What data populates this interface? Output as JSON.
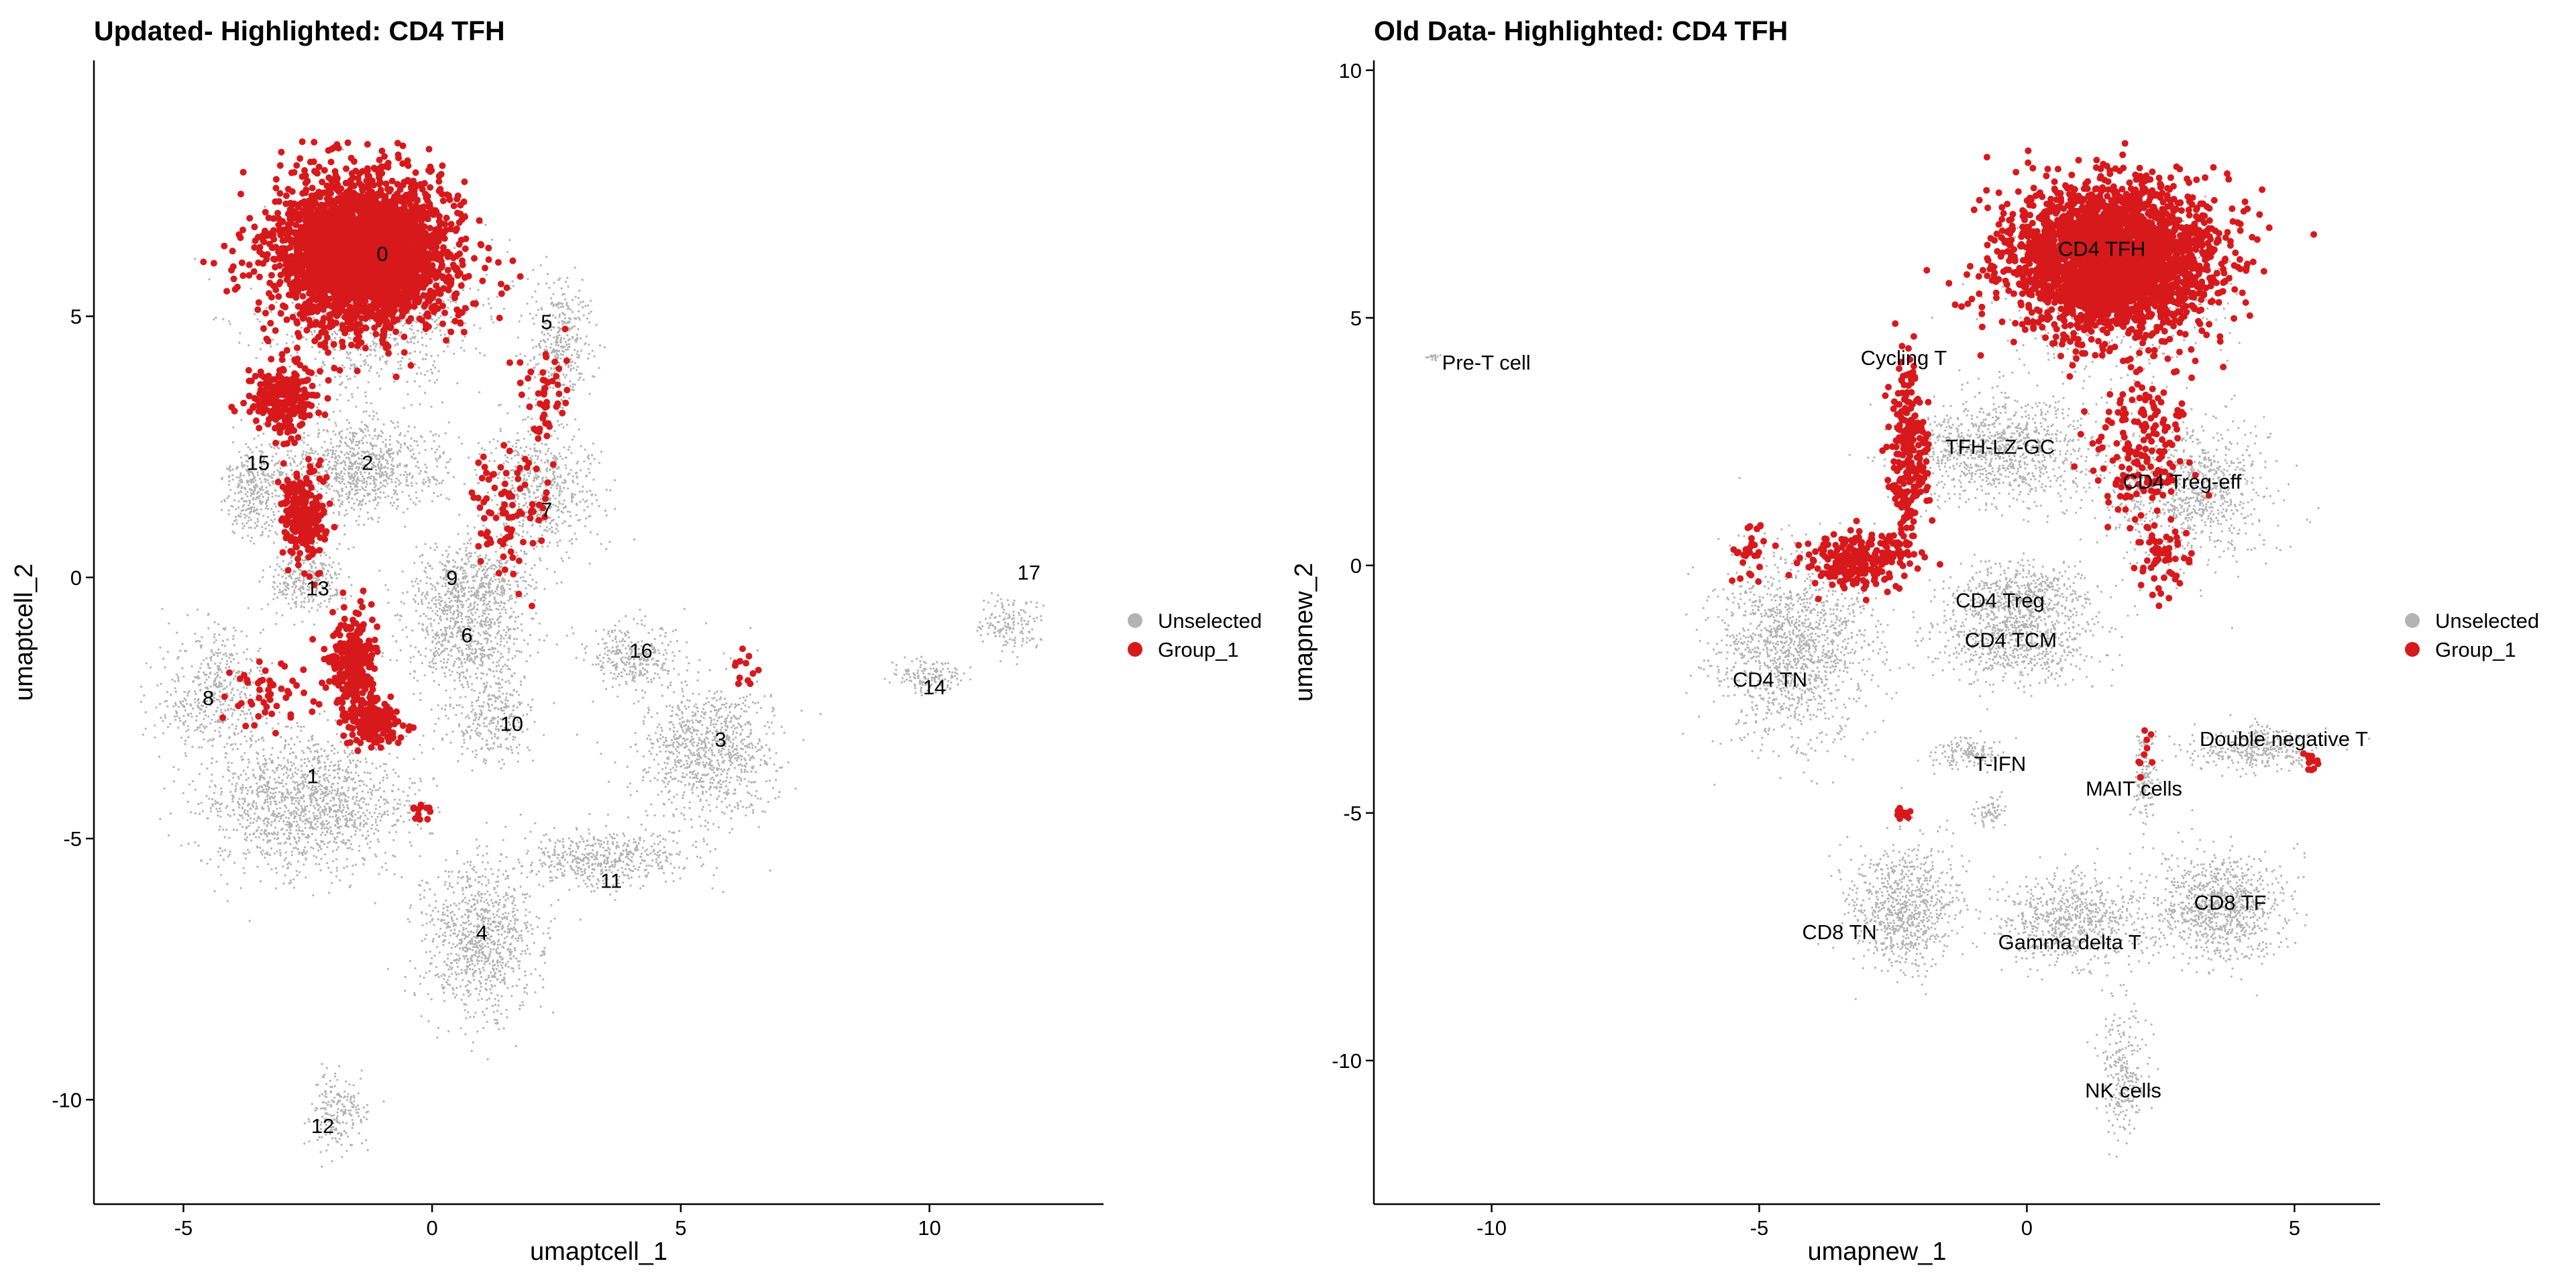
{
  "chart_data": [
    {
      "type": "scatter",
      "title": "Updated- Highlighted: CD4 TFH",
      "xlabel": "umaptcell_1",
      "ylabel": "umaptcell_2",
      "xlim": [
        -6.8,
        13.5
      ],
      "ylim": [
        -12,
        9.9
      ],
      "xticks": [
        -5,
        0,
        5,
        10
      ],
      "yticks": [
        -10,
        -5,
        0,
        5
      ],
      "xtick_labels": [
        "-5",
        "0",
        "5",
        "10"
      ],
      "ytick_labels": [
        "-10",
        "-5",
        "0",
        "5"
      ],
      "grid": false,
      "legend": {
        "position": "right",
        "entries": [
          {
            "name": "Unselected",
            "color": "#b3b3b3"
          },
          {
            "name": "Group_1",
            "color": "#d7191c"
          }
        ]
      },
      "series": [
        {
          "name": "Unselected",
          "color": "#b3b3b3",
          "clusters": [
            {
              "x": -1.2,
              "y": 5.0,
              "sx": 2.0,
              "sy": 1.6,
              "n": 900
            },
            {
              "x": 2.6,
              "y": 4.5,
              "sx": 0.6,
              "sy": 1.0,
              "n": 350
            },
            {
              "x": -1.5,
              "y": 2.1,
              "sx": 1.6,
              "sy": 0.8,
              "n": 900
            },
            {
              "x": 2.2,
              "y": 1.7,
              "sx": 1.0,
              "sy": 1.1,
              "n": 600
            },
            {
              "x": 0.8,
              "y": -0.2,
              "sx": 1.2,
              "sy": 0.7,
              "n": 600
            },
            {
              "x": 0.7,
              "y": -1.3,
              "sx": 1.1,
              "sy": 0.8,
              "n": 500
            },
            {
              "x": -2.5,
              "y": -4.3,
              "sx": 1.8,
              "sy": 1.2,
              "n": 1400
            },
            {
              "x": -4.4,
              "y": -2.2,
              "sx": 1.0,
              "sy": 1.2,
              "n": 500
            },
            {
              "x": 1.2,
              "y": -2.7,
              "sx": 0.8,
              "sy": 0.8,
              "n": 300
            },
            {
              "x": 4.0,
              "y": -1.5,
              "sx": 0.8,
              "sy": 0.6,
              "n": 300
            },
            {
              "x": 5.6,
              "y": -3.3,
              "sx": 1.2,
              "sy": 1.2,
              "n": 900
            },
            {
              "x": 3.5,
              "y": -5.4,
              "sx": 1.5,
              "sy": 0.5,
              "n": 500
            },
            {
              "x": 1.0,
              "y": -6.9,
              "sx": 1.1,
              "sy": 1.3,
              "n": 900
            },
            {
              "x": -1.9,
              "y": -10.2,
              "sx": 0.5,
              "sy": 0.7,
              "n": 200
            },
            {
              "x": 10.0,
              "y": -1.9,
              "sx": 0.6,
              "sy": 0.3,
              "n": 150
            },
            {
              "x": 11.6,
              "y": -0.9,
              "sx": 0.6,
              "sy": 0.5,
              "n": 150
            },
            {
              "x": -3.6,
              "y": 1.7,
              "sx": 0.5,
              "sy": 0.8,
              "n": 300
            },
            {
              "x": -2.5,
              "y": 0.0,
              "sx": 0.7,
              "sy": 0.6,
              "n": 300
            }
          ]
        },
        {
          "name": "Group_1",
          "color": "#d7191c",
          "clusters": [
            {
              "x": -1.4,
              "y": 6.2,
              "sx": 1.6,
              "sy": 1.3,
              "n": 3200
            },
            {
              "x": -3.0,
              "y": 3.4,
              "sx": 0.6,
              "sy": 0.6,
              "n": 250
            },
            {
              "x": -2.6,
              "y": 1.2,
              "sx": 0.4,
              "sy": 0.8,
              "n": 220
            },
            {
              "x": -1.6,
              "y": -1.6,
              "sx": 0.4,
              "sy": 0.9,
              "n": 260
            },
            {
              "x": -1.2,
              "y": -2.8,
              "sx": 0.5,
              "sy": 0.4,
              "n": 180
            },
            {
              "x": 1.6,
              "y": 1.4,
              "sx": 0.8,
              "sy": 1.1,
              "n": 90
            },
            {
              "x": 2.3,
              "y": 3.4,
              "sx": 0.4,
              "sy": 1.0,
              "n": 50
            },
            {
              "x": -3.2,
              "y": -2.2,
              "sx": 0.8,
              "sy": 0.6,
              "n": 50
            },
            {
              "x": 6.3,
              "y": -1.8,
              "sx": 0.3,
              "sy": 0.4,
              "n": 12
            },
            {
              "x": -0.2,
              "y": -4.5,
              "sx": 0.2,
              "sy": 0.2,
              "n": 12
            }
          ]
        }
      ],
      "cluster_labels": [
        {
          "text": "0",
          "x": -1.0,
          "y": 6.2
        },
        {
          "text": "5",
          "x": 2.3,
          "y": 4.9
        },
        {
          "text": "15",
          "x": -3.5,
          "y": 2.2
        },
        {
          "text": "2",
          "x": -1.3,
          "y": 2.2
        },
        {
          "text": "7",
          "x": 2.3,
          "y": 1.3
        },
        {
          "text": "13",
          "x": -2.3,
          "y": -0.2
        },
        {
          "text": "9",
          "x": 0.4,
          "y": 0.0
        },
        {
          "text": "6",
          "x": 0.7,
          "y": -1.1
        },
        {
          "text": "16",
          "x": 4.2,
          "y": -1.4
        },
        {
          "text": "17",
          "x": 12.0,
          "y": 0.1
        },
        {
          "text": "8",
          "x": -4.5,
          "y": -2.3
        },
        {
          "text": "10",
          "x": 1.6,
          "y": -2.8
        },
        {
          "text": "3",
          "x": 5.8,
          "y": -3.1
        },
        {
          "text": "14",
          "x": 10.1,
          "y": -2.1
        },
        {
          "text": "1",
          "x": -2.4,
          "y": -3.8
        },
        {
          "text": "11",
          "x": 3.6,
          "y": -5.8
        },
        {
          "text": "4",
          "x": 1.0,
          "y": -6.8
        },
        {
          "text": "12",
          "x": -2.2,
          "y": -10.5
        }
      ]
    },
    {
      "type": "scatter",
      "title": "Old Data- Highlighted: CD4 TFH",
      "xlabel": "umapnew_1",
      "ylabel": "umapnew_2",
      "xlim": [
        -12.2,
        6.6
      ],
      "ylim": [
        -12.9,
        10.2
      ],
      "xticks": [
        -10,
        -5,
        0,
        5
      ],
      "yticks": [
        -10,
        -5,
        0,
        5,
        10
      ],
      "xtick_labels": [
        "-10",
        "-5",
        "0",
        "5"
      ],
      "ytick_labels": [
        "-10",
        "-5",
        "0",
        "5",
        "10"
      ],
      "grid": false,
      "legend": {
        "position": "right",
        "entries": [
          {
            "name": "Unselected",
            "color": "#b3b3b3"
          },
          {
            "name": "Group_1",
            "color": "#d7191c"
          }
        ]
      },
      "series": [
        {
          "name": "Unselected",
          "color": "#b3b3b3",
          "clusters": [
            {
              "x": -11.1,
              "y": 4.2,
              "sx": 0.1,
              "sy": 0.05,
              "n": 15
            },
            {
              "x": 1.6,
              "y": 5.5,
              "sx": 1.8,
              "sy": 1.4,
              "n": 700
            },
            {
              "x": -0.5,
              "y": 2.3,
              "sx": 1.6,
              "sy": 1.0,
              "n": 1000
            },
            {
              "x": 3.0,
              "y": 1.5,
              "sx": 1.4,
              "sy": 1.2,
              "n": 900
            },
            {
              "x": -0.1,
              "y": -0.6,
              "sx": 1.2,
              "sy": 0.6,
              "n": 500
            },
            {
              "x": -0.2,
              "y": -1.5,
              "sx": 1.4,
              "sy": 0.8,
              "n": 700
            },
            {
              "x": -4.4,
              "y": -1.6,
              "sx": 1.3,
              "sy": 1.7,
              "n": 1400
            },
            {
              "x": -1.1,
              "y": -3.8,
              "sx": 0.6,
              "sy": 0.3,
              "n": 150
            },
            {
              "x": 4.3,
              "y": -3.7,
              "sx": 1.1,
              "sy": 0.4,
              "n": 350
            },
            {
              "x": -2.3,
              "y": -6.9,
              "sx": 0.9,
              "sy": 1.1,
              "n": 800
            },
            {
              "x": 0.8,
              "y": -7.2,
              "sx": 1.2,
              "sy": 0.8,
              "n": 700
            },
            {
              "x": 3.6,
              "y": -6.9,
              "sx": 1.1,
              "sy": 1.0,
              "n": 900
            },
            {
              "x": 2.2,
              "y": -4.3,
              "sx": 0.2,
              "sy": 0.8,
              "n": 150
            },
            {
              "x": 1.8,
              "y": -10.3,
              "sx": 0.4,
              "sy": 1.2,
              "n": 250
            },
            {
              "x": -0.7,
              "y": -5.0,
              "sx": 0.3,
              "sy": 0.3,
              "n": 60
            }
          ]
        },
        {
          "name": "Group_1",
          "color": "#d7191c",
          "clusters": [
            {
              "x": 1.6,
              "y": 6.2,
              "sx": 1.7,
              "sy": 1.3,
              "n": 3200
            },
            {
              "x": -2.2,
              "y": 2.2,
              "sx": 0.3,
              "sy": 1.6,
              "n": 260
            },
            {
              "x": -3.2,
              "y": 0.1,
              "sx": 0.9,
              "sy": 0.5,
              "n": 260
            },
            {
              "x": 2.2,
              "y": 2.3,
              "sx": 0.8,
              "sy": 1.3,
              "n": 180
            },
            {
              "x": -5.2,
              "y": 0.3,
              "sx": 0.4,
              "sy": 0.6,
              "n": 30
            },
            {
              "x": -2.3,
              "y": -5.0,
              "sx": 0.2,
              "sy": 0.15,
              "n": 14
            },
            {
              "x": 5.3,
              "y": -4.0,
              "sx": 0.15,
              "sy": 0.3,
              "n": 14
            },
            {
              "x": 2.2,
              "y": -4.0,
              "sx": 0.15,
              "sy": 0.8,
              "n": 10
            },
            {
              "x": 2.6,
              "y": 0.1,
              "sx": 0.5,
              "sy": 0.7,
              "n": 60
            }
          ]
        }
      ],
      "cluster_labels": [
        {
          "text": "CD4 TFH",
          "x": 1.4,
          "y": 6.4
        },
        {
          "text": "Pre-T cell",
          "x": -10.1,
          "y": 4.1
        },
        {
          "text": "Cycling T",
          "x": -2.3,
          "y": 4.2
        },
        {
          "text": "TFH-LZ-GC",
          "x": -0.5,
          "y": 2.4
        },
        {
          "text": "CD4 Treg-eff",
          "x": 2.9,
          "y": 1.7
        },
        {
          "text": "CD4 Treg",
          "x": -0.5,
          "y": -0.7
        },
        {
          "text": "CD4 TCM",
          "x": -0.3,
          "y": -1.5
        },
        {
          "text": "CD4 TN",
          "x": -4.8,
          "y": -2.3
        },
        {
          "text": "Double negative T",
          "x": 4.8,
          "y": -3.5
        },
        {
          "text": "T-IFN",
          "x": -0.5,
          "y": -4.0
        },
        {
          "text": "MAIT cells",
          "x": 2.0,
          "y": -4.5
        },
        {
          "text": "CD8 TF",
          "x": 3.8,
          "y": -6.8
        },
        {
          "text": "CD8 TN",
          "x": -3.5,
          "y": -7.4
        },
        {
          "text": "Gamma delta T",
          "x": 0.8,
          "y": -7.6
        },
        {
          "text": "NK cells",
          "x": 1.8,
          "y": -10.6
        }
      ]
    }
  ]
}
